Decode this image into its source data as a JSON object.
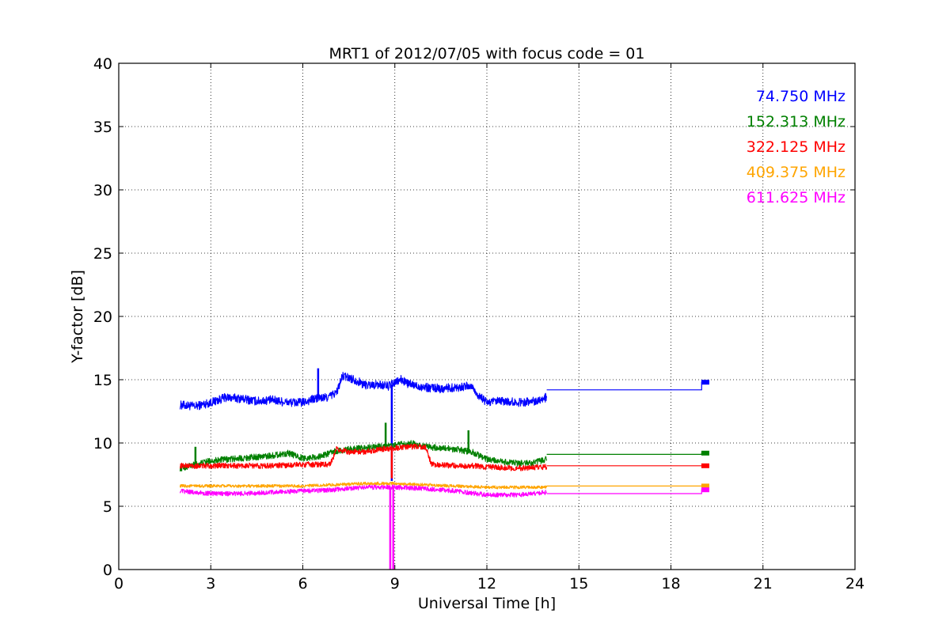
{
  "chart_data": {
    "type": "line",
    "title": "MRT1 of 2012/07/05 with focus code = 01",
    "xlabel": "Universal Time [h]",
    "ylabel": "Y-factor [dB]",
    "xlim": [
      0,
      24
    ],
    "ylim": [
      0,
      40
    ],
    "xticks": [
      0,
      3,
      6,
      9,
      12,
      15,
      18,
      21,
      24
    ],
    "yticks": [
      0,
      5,
      10,
      15,
      20,
      25,
      30,
      35,
      40
    ],
    "grid": true,
    "legend_position": "top-right",
    "series": [
      {
        "name": "74.750 MHz",
        "color": "#0000ff",
        "noise": 0.35,
        "points": [
          [
            2.0,
            13.0
          ],
          [
            2.5,
            12.9
          ],
          [
            3.0,
            13.2
          ],
          [
            3.5,
            13.6
          ],
          [
            4.0,
            13.5
          ],
          [
            4.5,
            13.3
          ],
          [
            5.0,
            13.4
          ],
          [
            5.5,
            13.2
          ],
          [
            6.0,
            13.2
          ],
          [
            6.4,
            13.5
          ],
          [
            6.8,
            13.6
          ],
          [
            7.1,
            14.0
          ],
          [
            7.3,
            15.3
          ],
          [
            7.7,
            15.0
          ],
          [
            8.0,
            14.6
          ],
          [
            8.5,
            14.6
          ],
          [
            8.8,
            14.5
          ],
          [
            9.2,
            15.0
          ],
          [
            9.5,
            14.6
          ],
          [
            10.0,
            14.4
          ],
          [
            10.5,
            14.3
          ],
          [
            11.0,
            14.4
          ],
          [
            11.5,
            14.5
          ],
          [
            11.7,
            13.8
          ],
          [
            12.0,
            13.2
          ],
          [
            12.5,
            13.3
          ],
          [
            13.0,
            13.2
          ],
          [
            13.5,
            13.3
          ],
          [
            13.95,
            13.6
          ]
        ],
        "gap_segment": [
          [
            13.95,
            14.2
          ],
          [
            19.0,
            14.2
          ],
          [
            19.0,
            14.8
          ],
          [
            19.25,
            14.8
          ]
        ],
        "spikes": [
          [
            6.5,
            15.9
          ],
          [
            8.9,
            7.0
          ]
        ]
      },
      {
        "name": "152.313 MHz",
        "color": "#008000",
        "noise": 0.25,
        "points": [
          [
            2.0,
            8.0
          ],
          [
            2.5,
            8.3
          ],
          [
            3.0,
            8.6
          ],
          [
            3.5,
            8.7
          ],
          [
            4.0,
            8.8
          ],
          [
            4.5,
            8.9
          ],
          [
            5.0,
            9.0
          ],
          [
            5.5,
            9.2
          ],
          [
            6.0,
            8.8
          ],
          [
            6.5,
            8.9
          ],
          [
            7.0,
            9.3
          ],
          [
            7.5,
            9.5
          ],
          [
            8.0,
            9.6
          ],
          [
            8.5,
            9.7
          ],
          [
            9.0,
            9.8
          ],
          [
            9.5,
            10.0
          ],
          [
            10.0,
            9.7
          ],
          [
            10.5,
            9.6
          ],
          [
            11.0,
            9.5
          ],
          [
            11.5,
            9.3
          ],
          [
            12.0,
            8.7
          ],
          [
            12.5,
            8.5
          ],
          [
            13.0,
            8.4
          ],
          [
            13.5,
            8.4
          ],
          [
            13.95,
            8.7
          ]
        ],
        "gap_segment": [
          [
            13.95,
            9.1
          ],
          [
            19.0,
            9.1
          ],
          [
            19.0,
            9.2
          ],
          [
            19.25,
            9.2
          ]
        ],
        "spikes": [
          [
            2.5,
            9.7
          ],
          [
            8.7,
            11.6
          ],
          [
            11.4,
            11.0
          ]
        ]
      },
      {
        "name": "322.125 MHz",
        "color": "#ff0000",
        "noise": 0.22,
        "points": [
          [
            2.0,
            8.2
          ],
          [
            3.0,
            8.2
          ],
          [
            4.0,
            8.2
          ],
          [
            5.0,
            8.2
          ],
          [
            6.0,
            8.3
          ],
          [
            6.9,
            8.3
          ],
          [
            7.1,
            9.5
          ],
          [
            7.5,
            9.3
          ],
          [
            8.0,
            9.3
          ],
          [
            8.5,
            9.5
          ],
          [
            9.0,
            9.6
          ],
          [
            9.5,
            9.7
          ],
          [
            10.0,
            9.7
          ],
          [
            10.2,
            8.3
          ],
          [
            11.0,
            8.2
          ],
          [
            11.5,
            8.2
          ],
          [
            12.0,
            8.1
          ],
          [
            13.0,
            8.0
          ],
          [
            13.95,
            8.1
          ]
        ],
        "gap_segment": [
          [
            13.95,
            8.2
          ],
          [
            19.25,
            8.2
          ]
        ],
        "spikes": [
          [
            8.9,
            7.2
          ]
        ]
      },
      {
        "name": "409.375 MHz",
        "color": "#ffa500",
        "noise": 0.12,
        "points": [
          [
            2.0,
            6.6
          ],
          [
            3.0,
            6.6
          ],
          [
            4.0,
            6.6
          ],
          [
            5.0,
            6.6
          ],
          [
            6.0,
            6.6
          ],
          [
            7.0,
            6.7
          ],
          [
            8.0,
            6.8
          ],
          [
            9.0,
            6.8
          ],
          [
            10.0,
            6.7
          ],
          [
            11.0,
            6.6
          ],
          [
            12.0,
            6.5
          ],
          [
            13.0,
            6.5
          ],
          [
            13.95,
            6.5
          ]
        ],
        "gap_segment": [
          [
            13.95,
            6.6
          ],
          [
            19.25,
            6.6
          ]
        ],
        "spikes": []
      },
      {
        "name": "611.625 MHz",
        "color": "#ff00ff",
        "noise": 0.18,
        "points": [
          [
            2.0,
            6.2
          ],
          [
            3.0,
            6.0
          ],
          [
            4.0,
            6.0
          ],
          [
            5.0,
            6.1
          ],
          [
            6.0,
            6.2
          ],
          [
            7.0,
            6.3
          ],
          [
            8.0,
            6.5
          ],
          [
            9.0,
            6.5
          ],
          [
            10.0,
            6.4
          ],
          [
            11.0,
            6.2
          ],
          [
            12.0,
            5.9
          ],
          [
            13.0,
            5.9
          ],
          [
            13.95,
            6.1
          ]
        ],
        "gap_segment": [
          [
            13.95,
            6.0
          ],
          [
            19.0,
            6.0
          ],
          [
            19.0,
            6.3
          ],
          [
            19.25,
            6.3
          ]
        ],
        "spikes": [
          [
            8.85,
            0.0
          ],
          [
            8.95,
            0.0
          ]
        ]
      }
    ]
  }
}
